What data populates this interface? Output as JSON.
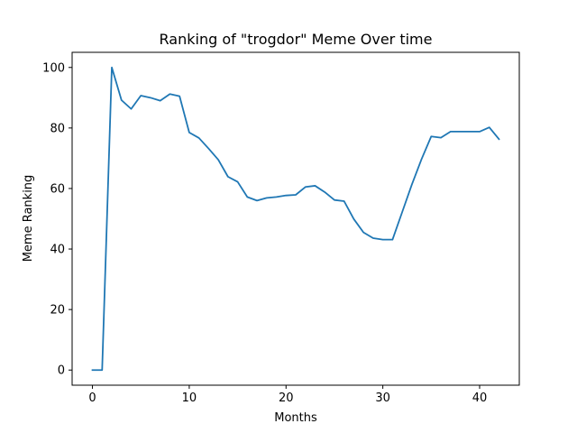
{
  "chart_data": {
    "type": "line",
    "title": "Ranking of \"trogdor\" Meme Over time",
    "xlabel": "Months",
    "ylabel": "Meme Ranking",
    "xlim": [
      -2.1,
      44.1
    ],
    "ylim": [
      -5,
      105
    ],
    "xticks": [
      0,
      10,
      20,
      30,
      40
    ],
    "yticks": [
      0,
      20,
      40,
      60,
      80,
      100
    ],
    "grid": false,
    "legend": null,
    "series": [
      {
        "color": "#1f77b4",
        "x": [
          0,
          1,
          2,
          3,
          4,
          5,
          6,
          7,
          8,
          9,
          10,
          11,
          12,
          13,
          14,
          15,
          16,
          17,
          18,
          19,
          20,
          21,
          22,
          23,
          24,
          25,
          26,
          27,
          28,
          29,
          30,
          31,
          32,
          33,
          34,
          35,
          36,
          37,
          38,
          39,
          40,
          41,
          42
        ],
        "y": [
          0,
          0,
          100,
          89.2,
          86.3,
          90.7,
          90,
          89,
          91.2,
          90.5,
          78.5,
          76.7,
          73.2,
          69.5,
          63.9,
          62.2,
          57.2,
          56,
          56.9,
          57.2,
          57.7,
          57.9,
          60.5,
          60.9,
          58.8,
          56.2,
          55.8,
          49.9,
          45.5,
          43.6,
          43.1,
          43.1,
          52.2,
          61.3,
          69.7,
          77.2,
          76.8,
          78.8,
          78.8,
          78.8,
          78.8,
          80.2,
          76.3
        ]
      }
    ]
  }
}
